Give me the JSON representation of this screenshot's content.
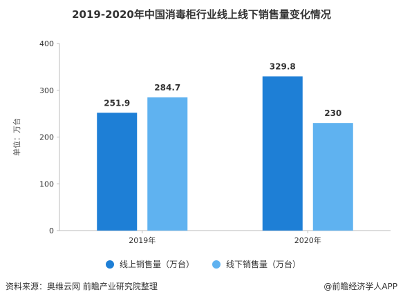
{
  "title": "2019-2020年中国消毒柜行业线上线下销售量变化情况",
  "colors": {
    "online": "#1e7fd6",
    "offline": "#5fb2f0",
    "axis": "#bbbbbb",
    "grid": "#dddddd",
    "text": "#333333"
  },
  "chart_data": {
    "type": "bar",
    "categories": [
      "2019年",
      "2020年"
    ],
    "series": [
      {
        "name": "线上销售量（万台）",
        "values": [
          251.9,
          329.8
        ],
        "labels": [
          "251.9",
          "329.8"
        ]
      },
      {
        "name": "线下销售量（万台）",
        "values": [
          284.7,
          230
        ],
        "labels": [
          "284.7",
          "230"
        ]
      }
    ],
    "ylabel": "单位：万台",
    "ylim": [
      0,
      400
    ],
    "yticks": [
      0,
      100,
      200,
      300,
      400
    ],
    "grid": false,
    "legend": "bottom"
  },
  "footer": {
    "source": "资料来源：奥维云网 前瞻产业研究院整理",
    "brand": "@前瞻经济学人APP"
  }
}
